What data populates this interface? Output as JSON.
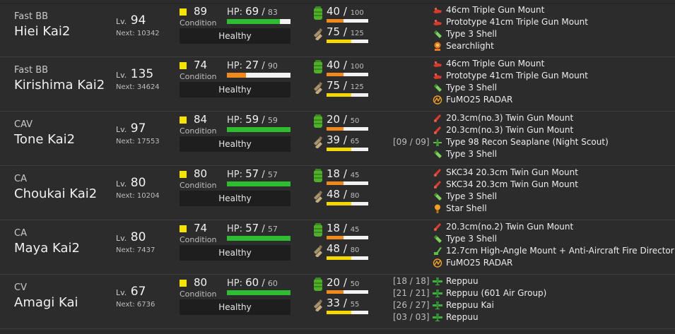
{
  "colors": {
    "hp_green": "#2ebd2e",
    "hp_orange": "#f08a1c",
    "fuel_orange": "#f08a1c",
    "ammo_yellow": "#f5d800",
    "condition_yellow": "#f5e400"
  },
  "labels": {
    "lv_prefix": "Lv.",
    "next_prefix": "Next:",
    "condition": "Condition",
    "hp_prefix": "HP:"
  },
  "ships": [
    {
      "type": "Fast BB",
      "name": "Hiei Kai2",
      "level": "94",
      "next": "10342",
      "condition": "89",
      "hp": "69",
      "hp_max": "83",
      "hp_fraction": 0.83,
      "hp_color": "#2ebd2e",
      "status": "Healthy",
      "fuel": "40",
      "fuel_max": "100",
      "fuel_fraction": 0.4,
      "ammo": "75",
      "ammo_max": "125",
      "ammo_fraction": 0.6,
      "equipment": [
        {
          "slot": "",
          "icon": "main-gun-red-icon",
          "name": "46cm Triple Gun Mount"
        },
        {
          "slot": "",
          "icon": "main-gun-red-icon",
          "name": "Prototype 41cm Triple Gun Mount"
        },
        {
          "slot": "",
          "icon": "shell-green-icon",
          "name": "Type 3 Shell"
        },
        {
          "slot": "",
          "icon": "searchlight-icon",
          "name": "Searchlight"
        }
      ]
    },
    {
      "type": "Fast BB",
      "name": "Kirishima Kai2",
      "level": "135",
      "next": "34624",
      "condition": "74",
      "hp": "27",
      "hp_max": "90",
      "hp_fraction": 0.3,
      "hp_color": "#f08a1c",
      "status": "Healthy",
      "fuel": "40",
      "fuel_max": "100",
      "fuel_fraction": 0.4,
      "ammo": "75",
      "ammo_max": "125",
      "ammo_fraction": 0.6,
      "equipment": [
        {
          "slot": "",
          "icon": "main-gun-red-icon",
          "name": "46cm Triple Gun Mount"
        },
        {
          "slot": "",
          "icon": "main-gun-red-icon",
          "name": "Prototype 41cm Triple Gun Mount"
        },
        {
          "slot": "",
          "icon": "shell-green-icon",
          "name": "Type 3 Shell"
        },
        {
          "slot": "",
          "icon": "radar-icon",
          "name": "FuMO25 RADAR"
        }
      ]
    },
    {
      "type": "CAV",
      "name": "Tone Kai2",
      "level": "97",
      "next": "17553",
      "condition": "84",
      "hp": "59",
      "hp_max": "59",
      "hp_fraction": 1.0,
      "hp_color": "#2ebd2e",
      "status": "Healthy",
      "fuel": "20",
      "fuel_max": "50",
      "fuel_fraction": 0.4,
      "ammo": "39",
      "ammo_max": "65",
      "ammo_fraction": 0.6,
      "equipment": [
        {
          "slot": "",
          "icon": "medium-gun-red-icon",
          "name": "20.3cm(no.3) Twin Gun Mount"
        },
        {
          "slot": "",
          "icon": "medium-gun-red-icon",
          "name": "20.3cm(no.3) Twin Gun Mount"
        },
        {
          "slot": "[09 / 09]",
          "icon": "seaplane-green-icon",
          "name": "Type 98 Recon Seaplane (Night Scout)"
        },
        {
          "slot": "",
          "icon": "shell-green-icon",
          "name": "Type 3 Shell"
        }
      ]
    },
    {
      "type": "CA",
      "name": "Choukai Kai2",
      "level": "80",
      "next": "10204",
      "condition": "80",
      "hp": "57",
      "hp_max": "57",
      "hp_fraction": 1.0,
      "hp_color": "#2ebd2e",
      "status": "Healthy",
      "fuel": "18",
      "fuel_max": "45",
      "fuel_fraction": 0.4,
      "ammo": "48",
      "ammo_max": "80",
      "ammo_fraction": 0.6,
      "equipment": [
        {
          "slot": "",
          "icon": "medium-gun-red-icon",
          "name": "SKC34 20.3cm Twin Gun Mount"
        },
        {
          "slot": "",
          "icon": "medium-gun-red-icon",
          "name": "SKC34 20.3cm Twin Gun Mount"
        },
        {
          "slot": "",
          "icon": "shell-green-icon",
          "name": "Type 3 Shell"
        },
        {
          "slot": "",
          "icon": "star-shell-icon",
          "name": "Star Shell"
        }
      ]
    },
    {
      "type": "CA",
      "name": "Maya Kai2",
      "level": "80",
      "next": "7437",
      "condition": "74",
      "hp": "57",
      "hp_max": "57",
      "hp_fraction": 1.0,
      "hp_color": "#2ebd2e",
      "status": "Healthy",
      "fuel": "18",
      "fuel_max": "45",
      "fuel_fraction": 0.4,
      "ammo": "48",
      "ammo_max": "80",
      "ammo_fraction": 0.6,
      "equipment": [
        {
          "slot": "",
          "icon": "medium-gun-red-icon",
          "name": "20.3cm(no.2) Twin Gun Mount"
        },
        {
          "slot": "",
          "icon": "shell-green-icon",
          "name": "Type 3 Shell"
        },
        {
          "slot": "",
          "icon": "aa-gun-green-icon",
          "name": "12.7cm High-Angle Mount + Anti-Aircraft Fire Director"
        },
        {
          "slot": "",
          "icon": "radar-icon",
          "name": "FuMO25 RADAR"
        }
      ]
    },
    {
      "type": "CV",
      "name": "Amagi Kai",
      "level": "67",
      "next": "6736",
      "condition": "80",
      "hp": "60",
      "hp_max": "60",
      "hp_fraction": 1.0,
      "hp_color": "#2ebd2e",
      "status": "Healthy",
      "fuel": "20",
      "fuel_max": "50",
      "fuel_fraction": 0.4,
      "ammo": "33",
      "ammo_max": "55",
      "ammo_fraction": 0.6,
      "equipment": [
        {
          "slot": "[18 / 18]",
          "icon": "fighter-green-icon",
          "name": "Reppuu"
        },
        {
          "slot": "[21 / 21]",
          "icon": "fighter-green-icon",
          "name": "Reppuu (601 Air Group)"
        },
        {
          "slot": "[26 / 27]",
          "icon": "fighter-green-icon",
          "name": "Reppuu Kai"
        },
        {
          "slot": "[03 / 03]",
          "icon": "fighter-green-icon",
          "name": "Reppuu"
        }
      ]
    }
  ]
}
